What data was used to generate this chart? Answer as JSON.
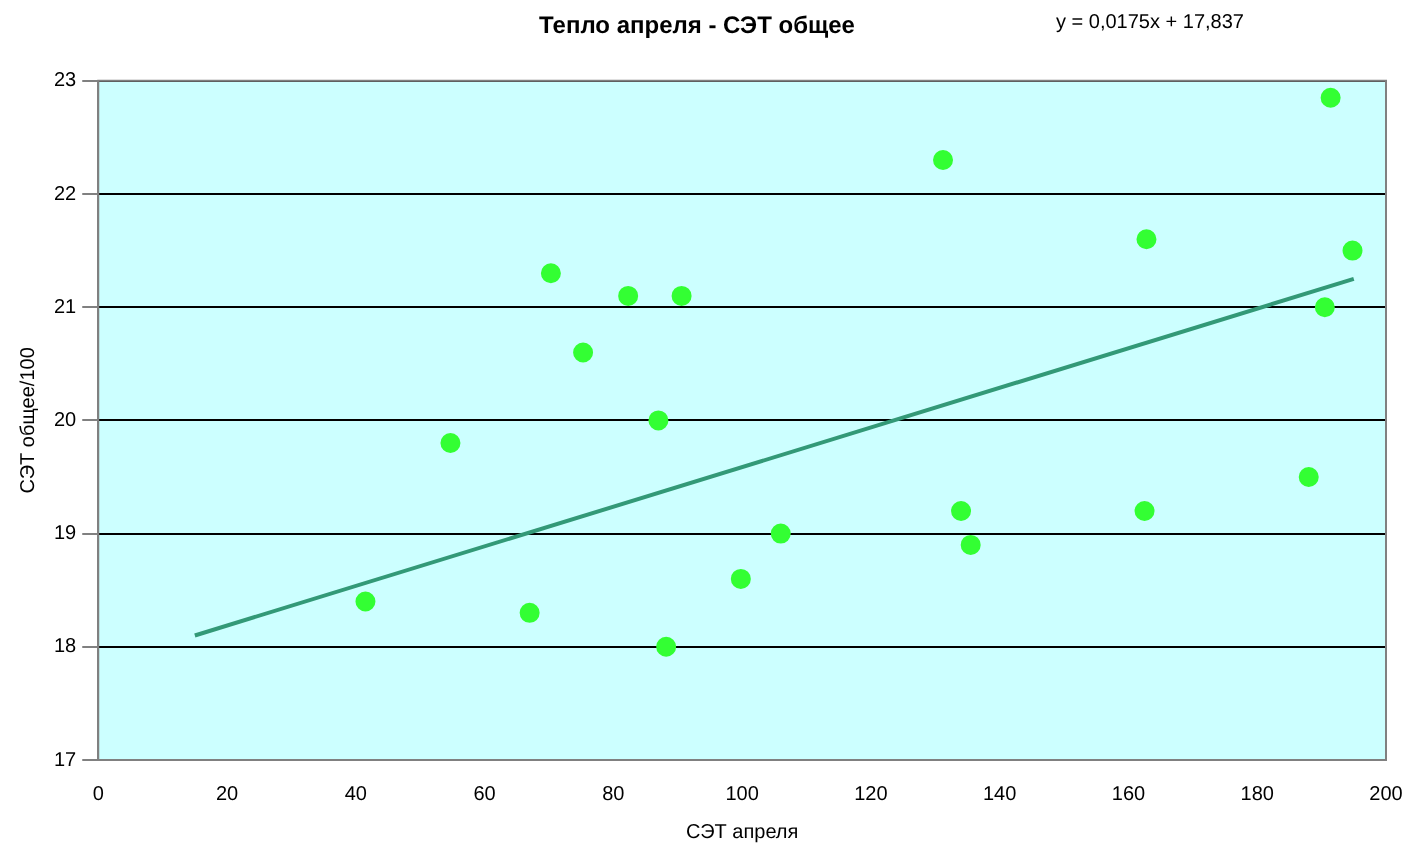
{
  "chart_data": {
    "type": "scatter",
    "title": "Тепло апреля - СЭТ общее",
    "xlabel": "СЭТ апреля",
    "ylabel": "СЭТ общее/100",
    "annotations": [
      "y = 0,0175x + 17,837"
    ],
    "series": [
      {
        "color": "#33ff33",
        "x": [
          41.5,
          54.7,
          67,
          70.3,
          75.3,
          82.3,
          87,
          88.2,
          90.6,
          99.8,
          106,
          131.2,
          134,
          135.5,
          162.5,
          162.8,
          188,
          190.5,
          191.4,
          194.8
        ],
        "values": [
          18.4,
          19.8,
          18.3,
          21.3,
          20.6,
          21.1,
          20.0,
          18.0,
          21.1,
          18.6,
          19.0,
          22.3,
          19.2,
          18.9,
          19.2,
          21.6,
          19.5,
          21.0,
          22.85,
          21.5
        ]
      },
      {
        "type": "line",
        "marker": "none",
        "color": "#339977",
        "x": [
          15,
          195
        ],
        "values": [
          18.1,
          21.25
        ]
      }
    ],
    "xlim": [
      0,
      200
    ],
    "xticks": [
      0,
      20,
      40,
      60,
      80,
      100,
      120,
      140,
      160,
      180,
      200
    ],
    "ylim": [
      17,
      23
    ],
    "yticks": [
      17,
      18,
      19,
      20,
      21,
      22,
      23
    ],
    "grid": "y",
    "legend": false,
    "marker": "circle"
  }
}
